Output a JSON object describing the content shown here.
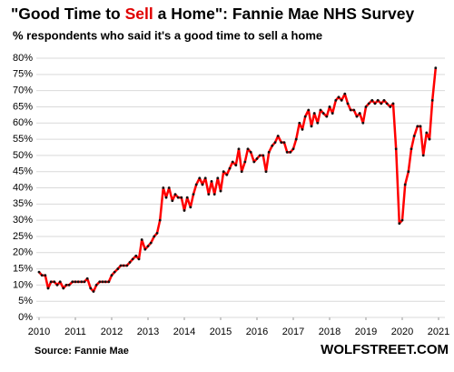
{
  "chart_data": {
    "type": "line",
    "title": [
      "\"Good Time to ",
      "Sell",
      " a Home\": Fannie Mae NHS Survey"
    ],
    "title_highlight_color": "#e00000",
    "subtitle": "% respondents who said it's a good time to sell a home",
    "source": "Source: Fannie Mae",
    "brand": "WOLFSTREET.COM",
    "xlim": [
      2010,
      2021
    ],
    "xticks": [
      2010,
      2011,
      2012,
      2013,
      2014,
      2015,
      2016,
      2017,
      2018,
      2019,
      2020,
      2021
    ],
    "ylim": [
      0,
      80
    ],
    "yticks": [
      {
        "value": 0,
        "label": "0%"
      },
      {
        "value": 5,
        "label": "5%"
      },
      {
        "value": 10,
        "label": "10%"
      },
      {
        "value": 15,
        "label": "15%"
      },
      {
        "value": 20,
        "label": "20%"
      },
      {
        "value": 25,
        "label": "25%"
      },
      {
        "value": 30,
        "label": "30%"
      },
      {
        "value": 35,
        "label": "35%"
      },
      {
        "value": 40,
        "label": "40%"
      },
      {
        "value": 45,
        "label": "45%"
      },
      {
        "value": 50,
        "label": "50%"
      },
      {
        "value": 55,
        "label": "55%"
      },
      {
        "value": 60,
        "label": "60%"
      },
      {
        "value": 65,
        "label": "65%"
      },
      {
        "value": 70,
        "label": "70%"
      },
      {
        "value": 75,
        "label": "75%"
      },
      {
        "value": 80,
        "label": "80%"
      }
    ],
    "grid": true,
    "x": [
      2010,
      2010.08,
      2010.17,
      2010.25,
      2010.33,
      2010.42,
      2010.5,
      2010.58,
      2010.67,
      2010.75,
      2010.83,
      2010.92,
      2011,
      2011.08,
      2011.17,
      2011.25,
      2011.33,
      2011.42,
      2011.5,
      2011.58,
      2011.67,
      2011.75,
      2011.83,
      2011.92,
      2012,
      2012.08,
      2012.17,
      2012.25,
      2012.33,
      2012.42,
      2012.5,
      2012.58,
      2012.67,
      2012.75,
      2012.83,
      2012.92,
      2013,
      2013.08,
      2013.17,
      2013.25,
      2013.33,
      2013.42,
      2013.5,
      2013.58,
      2013.67,
      2013.75,
      2013.83,
      2013.92,
      2014,
      2014.08,
      2014.17,
      2014.25,
      2014.33,
      2014.42,
      2014.5,
      2014.58,
      2014.67,
      2014.75,
      2014.83,
      2014.92,
      2015,
      2015.08,
      2015.17,
      2015.25,
      2015.33,
      2015.42,
      2015.5,
      2015.58,
      2015.67,
      2015.75,
      2015.83,
      2015.92,
      2016,
      2016.08,
      2016.17,
      2016.25,
      2016.33,
      2016.42,
      2016.5,
      2016.58,
      2016.67,
      2016.75,
      2016.83,
      2016.92,
      2017,
      2017.08,
      2017.17,
      2017.25,
      2017.33,
      2017.42,
      2017.5,
      2017.58,
      2017.67,
      2017.75,
      2017.83,
      2017.92,
      2018,
      2018.08,
      2018.17,
      2018.25,
      2018.33,
      2018.42,
      2018.5,
      2018.58,
      2018.67,
      2018.75,
      2018.83,
      2018.92,
      2019,
      2019.08,
      2019.17,
      2019.25,
      2019.33,
      2019.42,
      2019.5,
      2019.58,
      2019.67,
      2019.75,
      2019.83,
      2019.92,
      2020,
      2020.08,
      2020.17,
      2020.25,
      2020.33,
      2020.42,
      2020.5,
      2020.58,
      2020.67,
      2020.75,
      2020.83,
      2020.92
    ],
    "series": [
      {
        "name": "Good time to sell",
        "color": "#ff0000",
        "marker_color": "#111111",
        "values": [
          14,
          13,
          13,
          9,
          11,
          11,
          10,
          11,
          9,
          10,
          10,
          11,
          11,
          11,
          11,
          11,
          12,
          9,
          8,
          10,
          11,
          11,
          11,
          11,
          13,
          14,
          15,
          16,
          16,
          16,
          17,
          18,
          19,
          18,
          24,
          21,
          22,
          23,
          25,
          26,
          30,
          40,
          37,
          40,
          36,
          38,
          37,
          37,
          33,
          37,
          34,
          38,
          41,
          43,
          41,
          43,
          38,
          42,
          38,
          43,
          39,
          45,
          44,
          46,
          48,
          47,
          52,
          45,
          48,
          52,
          51,
          48,
          49,
          50,
          50,
          45,
          51,
          53,
          54,
          56,
          54,
          54,
          51,
          51,
          52,
          55,
          60,
          58,
          62,
          64,
          59,
          63,
          60,
          64,
          63,
          62,
          65,
          63,
          67,
          68,
          67,
          69,
          66,
          64,
          64,
          62,
          63,
          60,
          65,
          66,
          67,
          66,
          67,
          66,
          67,
          66,
          65,
          66,
          52,
          29,
          30,
          41,
          45,
          52,
          56,
          59,
          59,
          50,
          57,
          55,
          67,
          77
        ]
      }
    ]
  }
}
